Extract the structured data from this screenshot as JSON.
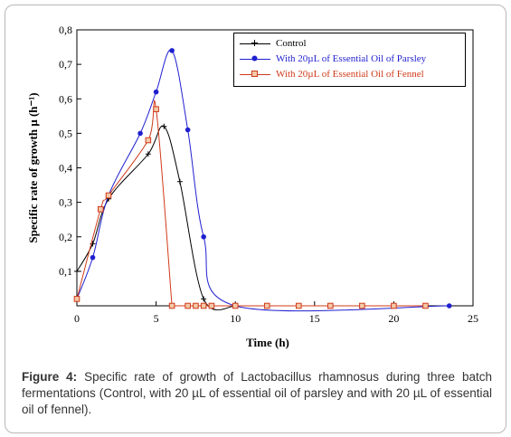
{
  "chart_data": {
    "type": "line",
    "xlabel": "Time (h)",
    "ylabel": "Specific rate of growth μ (h⁻¹)",
    "xlim": [
      0,
      25
    ],
    "ylim": [
      0,
      0.8
    ],
    "x_ticks": [
      "0",
      "5",
      "10",
      "15",
      "20",
      "25"
    ],
    "y_ticks": [
      "0,1",
      "0,2",
      "0,3",
      "0,4",
      "0,5",
      "0,6",
      "0,7",
      "0,8"
    ],
    "grid": false,
    "legend_position": "top-right",
    "series": [
      {
        "name": "Control",
        "color": "#000000",
        "marker": "plus",
        "x": [
          0,
          1,
          2,
          4.5,
          5.5,
          6.5,
          8,
          10
        ],
        "y": [
          0.1,
          0.18,
          0.31,
          0.44,
          0.52,
          0.36,
          0.02,
          0.0
        ]
      },
      {
        "name": "With 20µL of Essential Oil of Parsley",
        "color": "#1f1fd0",
        "marker": "circle",
        "x": [
          0,
          1,
          2,
          4,
          5,
          6,
          7,
          8,
          10,
          23.5
        ],
        "y": [
          0.02,
          0.14,
          0.32,
          0.5,
          0.62,
          0.74,
          0.51,
          0.2,
          0.0,
          0.0
        ]
      },
      {
        "name": "With 20µL of Essential Oil of Fennel",
        "color": "#d03a1a",
        "marker": "square",
        "x": [
          0,
          1.5,
          2,
          4.5,
          5,
          6,
          7,
          7.5,
          8,
          8.5,
          10,
          12,
          14,
          16,
          18,
          20,
          22
        ],
        "y": [
          0.02,
          0.28,
          0.32,
          0.48,
          0.57,
          0.0,
          0.0,
          0.0,
          0.0,
          0.0,
          0.0,
          0.0,
          0.0,
          0.0,
          0.0,
          0.0,
          0.0
        ]
      }
    ]
  },
  "caption": {
    "label": "Figure 4:",
    "text": " Specific rate of growth of Lactobacillus rhamnosus during three batch fermentations (Control, with 20 µL of essential oil of parsley and with 20 µL of essential oil of fennel)."
  }
}
